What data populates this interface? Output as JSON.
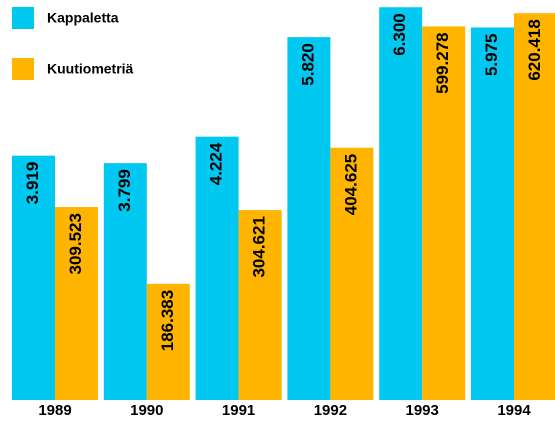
{
  "chart_data": {
    "type": "bar",
    "categories": [
      "1989",
      "1990",
      "1991",
      "1992",
      "1993",
      "1994"
    ],
    "series": [
      {
        "name": "Kappaletta",
        "color": "#00c8f0",
        "values": [
          3919,
          3799,
          4224,
          5820,
          6300,
          5975
        ],
        "value_labels": [
          "3.919",
          "3.799",
          "4.224",
          "5.820",
          "6.300",
          "5.975"
        ]
      },
      {
        "name": "Kuutiometriä",
        "color": "#ffb400",
        "axis": "y2",
        "values": [
          309523,
          186383,
          304621,
          404625,
          599278,
          620418
        ],
        "value_labels": [
          "309.523",
          "186.383",
          "304.621",
          "404.625",
          "599.278",
          "620.418"
        ]
      }
    ],
    "ylim": [
      0,
      6400
    ],
    "y2lim": [
      0,
      640000
    ]
  }
}
